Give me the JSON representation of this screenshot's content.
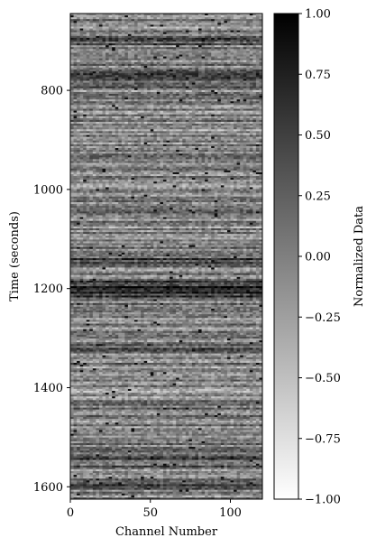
{
  "chart_data": {
    "type": "heatmap",
    "colormap": "gray_r",
    "xlabel": "Channel Number",
    "ylabel": "Time (seconds)",
    "colorbar_label": "Normalized Data",
    "xlim": [
      0,
      120
    ],
    "ylim": [
      1625,
      645
    ],
    "x_ticks": [
      0,
      50,
      100
    ],
    "y_ticks": [
      800,
      1000,
      1200,
      1400,
      1600
    ],
    "colorbar_range": [
      -1.0,
      1.0
    ],
    "colorbar_ticks": [
      "1.00",
      "0.75",
      "0.50",
      "0.25",
      "0.00",
      "−0.25",
      "−0.50",
      "−0.75",
      "−1.00"
    ],
    "colorbar_tick_values": [
      1.0,
      0.75,
      0.5,
      0.25,
      0.0,
      -0.25,
      -0.5,
      -0.75,
      -1.0
    ],
    "dark_bands_seconds": [
      700,
      770,
      790,
      1140,
      1190,
      1200,
      1215,
      1320,
      1550,
      1595
    ],
    "colors": {
      "low": "#ffffff",
      "high": "#000000"
    }
  }
}
